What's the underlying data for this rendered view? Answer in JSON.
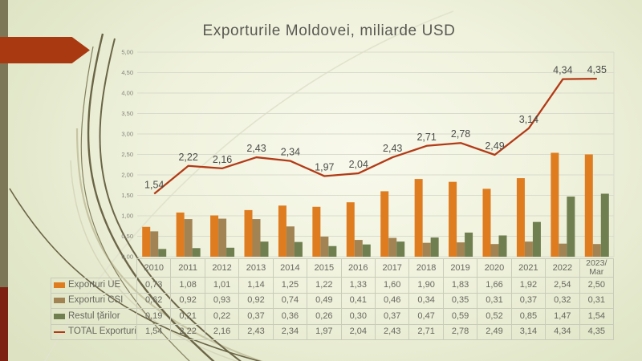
{
  "slide": {
    "title": "Exporturile Moldovei, miliarde USD"
  },
  "chart_data": {
    "type": "combo-bar-line",
    "title": "Exporturile Moldovei, miliarde USD",
    "categories": [
      "2010",
      "2011",
      "2012",
      "2013",
      "2014",
      "2015",
      "2016",
      "2017",
      "2018",
      "2019",
      "2020",
      "2021",
      "2022",
      "2023/Mar"
    ],
    "series": [
      {
        "name": "Exporturi UE",
        "type": "bar",
        "color": "#df7c1f",
        "values": [
          0.73,
          1.08,
          1.01,
          1.14,
          1.25,
          1.22,
          1.33,
          1.6,
          1.9,
          1.83,
          1.66,
          1.92,
          2.54,
          2.5
        ]
      },
      {
        "name": "Exporturi CSI",
        "type": "bar",
        "color": "#a28353",
        "values": [
          0.62,
          0.92,
          0.93,
          0.92,
          0.74,
          0.49,
          0.41,
          0.46,
          0.34,
          0.35,
          0.31,
          0.37,
          0.32,
          0.31
        ]
      },
      {
        "name": "Restul țărilor",
        "type": "bar",
        "color": "#6f7f4f",
        "values": [
          0.19,
          0.21,
          0.22,
          0.37,
          0.36,
          0.26,
          0.3,
          0.37,
          0.47,
          0.59,
          0.52,
          0.85,
          1.47,
          1.54
        ]
      },
      {
        "name": "TOTAL Exporturi",
        "type": "line",
        "color": "#b23a17",
        "values": [
          1.54,
          2.22,
          2.16,
          2.43,
          2.34,
          1.97,
          2.04,
          2.43,
          2.71,
          2.78,
          2.49,
          3.14,
          4.34,
          4.35
        ],
        "data_labels": [
          "1,54",
          "2,22",
          "2,16",
          "2,43",
          "2,34",
          "1,97",
          "2,04",
          "2,43",
          "2,71",
          "2,78",
          "2,49",
          "3,14",
          "4,34",
          "4,35"
        ]
      }
    ],
    "ylim": [
      0,
      5
    ],
    "ytick_step": 0.5,
    "ytick_labels": [
      "0,00",
      "0,50",
      "1,00",
      "1,50",
      "2,00",
      "2,50",
      "3,00",
      "3,50",
      "4,00",
      "4,50",
      "5,00"
    ],
    "grid": true,
    "decimal_separator": ",",
    "legend_position": "data-table-left",
    "colors": {
      "gridline": "#d9dbcc",
      "axis_text": "#83837b",
      "data_label_text": "#4d4d4a",
      "table_text": "#68685f",
      "table_border": "#c9ccb8"
    }
  },
  "decor": {
    "left_strip_olive": "#7c7857",
    "left_strip_red": "#7e2112",
    "arrow_red": "#a93910",
    "curve_dark": "#6b6547",
    "curve_light": "#c6c5a4",
    "curve_faint": "#e2e3cd"
  }
}
